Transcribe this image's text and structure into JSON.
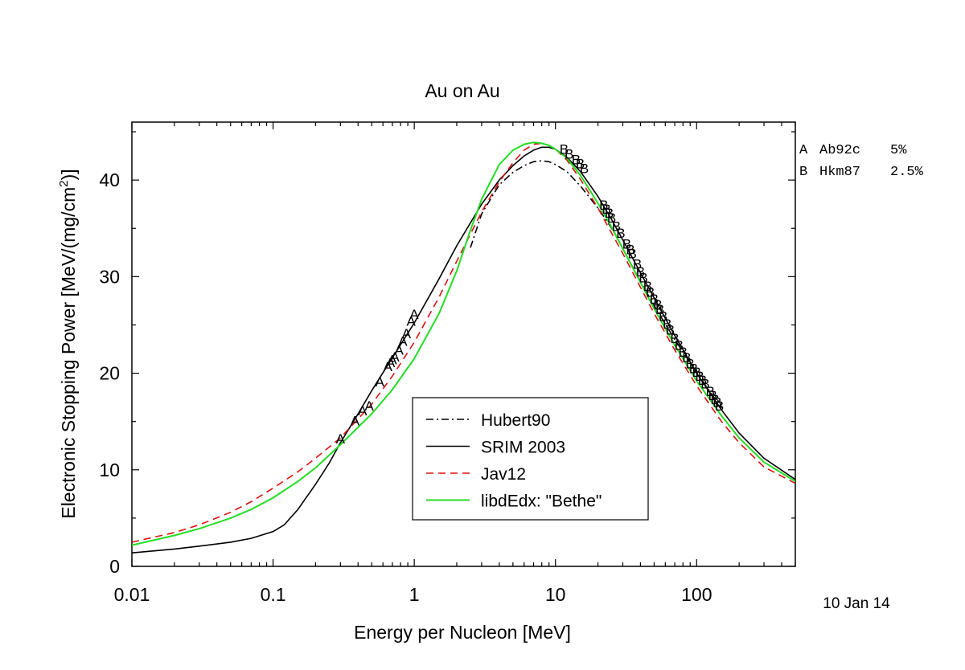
{
  "chart_data": {
    "type": "line",
    "title": "Au on Au",
    "xlabel": "Energy per Nucleon [MeV]",
    "ylabel_main": "Electronic Stopping Power [MeV/(mg/cm",
    "ylabel_sup": "2",
    "ylabel_tail": ")]",
    "x_scale": "log",
    "xlim": [
      0.01,
      500
    ],
    "ylim": [
      0,
      46
    ],
    "x_ticks": [
      0.01,
      0.1,
      1,
      10,
      100
    ],
    "x_tick_labels": [
      "0.01",
      "0.1",
      "1",
      "10",
      "100"
    ],
    "y_ticks": [
      0,
      10,
      20,
      30,
      40
    ],
    "y_tick_labels": [
      "0",
      "10",
      "20",
      "30",
      "40"
    ],
    "date_label": "10 Jan 14",
    "legend_position": "center-bottom",
    "series": [
      {
        "name": "Hubert90",
        "color": "#000000",
        "dash": "dashdot",
        "x": [
          2.5,
          3,
          4,
          5,
          6,
          7,
          8,
          9,
          10,
          12,
          15,
          20,
          25,
          30,
          40,
          50,
          60,
          70,
          80,
          90,
          100,
          120,
          150
        ],
        "y": [
          33.0,
          36.5,
          39.5,
          40.8,
          41.5,
          41.9,
          42.0,
          41.9,
          41.6,
          40.9,
          39.4,
          37.1,
          35.0,
          32.9,
          29.5,
          27.0,
          25.1,
          23.5,
          22.2,
          21.1,
          20.1,
          18.4,
          16.4
        ]
      },
      {
        "name": "SRIM 2003",
        "color": "#000000",
        "dash": "solid",
        "x": [
          0.01,
          0.02,
          0.03,
          0.05,
          0.07,
          0.1,
          0.12,
          0.15,
          0.2,
          0.25,
          0.3,
          0.4,
          0.5,
          0.7,
          1,
          1.5,
          2,
          3,
          4,
          5,
          6,
          7,
          8,
          9,
          10,
          12,
          15,
          20,
          25,
          30,
          40,
          50,
          70,
          100,
          150,
          200,
          300,
          500
        ],
        "y": [
          1.4,
          1.8,
          2.1,
          2.5,
          2.9,
          3.6,
          4.3,
          5.9,
          8.5,
          10.7,
          12.8,
          15.8,
          18.2,
          21.6,
          25.2,
          29.8,
          33.2,
          37.5,
          40.0,
          41.5,
          42.5,
          43.1,
          43.4,
          43.4,
          43.2,
          42.4,
          40.9,
          38.3,
          35.9,
          33.8,
          30.4,
          27.8,
          23.9,
          20.0,
          16.2,
          13.8,
          11.2,
          9.0
        ]
      },
      {
        "name": "Jav12",
        "color": "#dd1111",
        "dash": "dashed",
        "x": [
          0.01,
          0.02,
          0.03,
          0.05,
          0.07,
          0.1,
          0.15,
          0.2,
          0.3,
          0.5,
          0.7,
          1,
          1.5,
          2,
          3,
          4,
          5,
          6,
          7,
          8,
          9,
          10,
          12,
          15,
          20,
          25,
          30,
          40,
          50,
          70,
          100,
          150,
          200,
          300,
          500
        ],
        "y": [
          2.5,
          3.5,
          4.3,
          5.6,
          6.7,
          8.1,
          9.8,
          11.2,
          13.3,
          16.8,
          19.7,
          23.2,
          27.9,
          31.6,
          36.7,
          39.8,
          41.8,
          43.1,
          43.7,
          43.8,
          43.6,
          43.2,
          42.1,
          40.1,
          37.1,
          34.5,
          32.4,
          28.9,
          26.2,
          22.4,
          18.7,
          15.0,
          12.8,
          10.3,
          8.6
        ]
      },
      {
        "name": "libdEdx: \"Bethe\"",
        "color": "#22dd22",
        "dash": "solid",
        "x": [
          0.01,
          0.02,
          0.03,
          0.05,
          0.07,
          0.1,
          0.15,
          0.2,
          0.3,
          0.5,
          0.7,
          1,
          1.5,
          2,
          2.5,
          3,
          4,
          5,
          6,
          7,
          8,
          9,
          10,
          12,
          15,
          20,
          25,
          30,
          40,
          50,
          70,
          100,
          150,
          200,
          300,
          500
        ],
        "y": [
          2.2,
          3.2,
          3.9,
          5.0,
          5.9,
          7.1,
          8.8,
          10.2,
          12.6,
          15.8,
          18.3,
          21.5,
          26.2,
          30.6,
          34.8,
          38.0,
          41.6,
          43.1,
          43.7,
          43.9,
          43.8,
          43.6,
          43.2,
          42.3,
          40.5,
          37.6,
          35.1,
          32.9,
          29.4,
          26.7,
          22.9,
          19.2,
          15.6,
          13.3,
          10.8,
          8.8
        ]
      }
    ],
    "markers": [
      {
        "label": "A",
        "name": "Ab92c",
        "uncertainty": "5%",
        "x": [
          0.3,
          0.38,
          0.43,
          0.48,
          0.57,
          0.65,
          0.68,
          0.7,
          0.73,
          0.78,
          0.83,
          0.88,
          0.95,
          1.0
        ],
        "y": [
          13.3,
          15.2,
          16.2,
          16.7,
          19.2,
          20.8,
          21.2,
          21.5,
          21.8,
          22.5,
          23.4,
          24.2,
          25.5,
          26.2
        ]
      },
      {
        "label": "B",
        "name": "Hkm87",
        "uncertainty": "2.5%",
        "x": [
          11.5,
          12.5,
          14,
          15,
          16,
          22,
          23,
          24,
          25,
          27,
          29,
          32,
          34,
          35,
          38,
          40,
          42,
          45,
          47,
          50,
          53,
          55,
          58,
          62,
          65,
          70,
          75,
          80,
          85,
          90,
          95,
          100,
          105,
          110,
          115,
          125,
          130,
          135,
          140,
          145
        ],
        "y": [
          43.3,
          42.8,
          42.2,
          41.8,
          41.3,
          37.5,
          37.1,
          36.7,
          36.2,
          35.3,
          34.6,
          33.5,
          32.9,
          32.5,
          31.4,
          30.6,
          30.0,
          29.1,
          28.5,
          27.8,
          27.2,
          26.7,
          26.0,
          25.2,
          24.6,
          23.7,
          23.0,
          22.3,
          21.7,
          21.1,
          20.6,
          20.2,
          19.8,
          19.4,
          19.0,
          18.2,
          17.8,
          17.4,
          17.1,
          16.7
        ]
      }
    ]
  }
}
